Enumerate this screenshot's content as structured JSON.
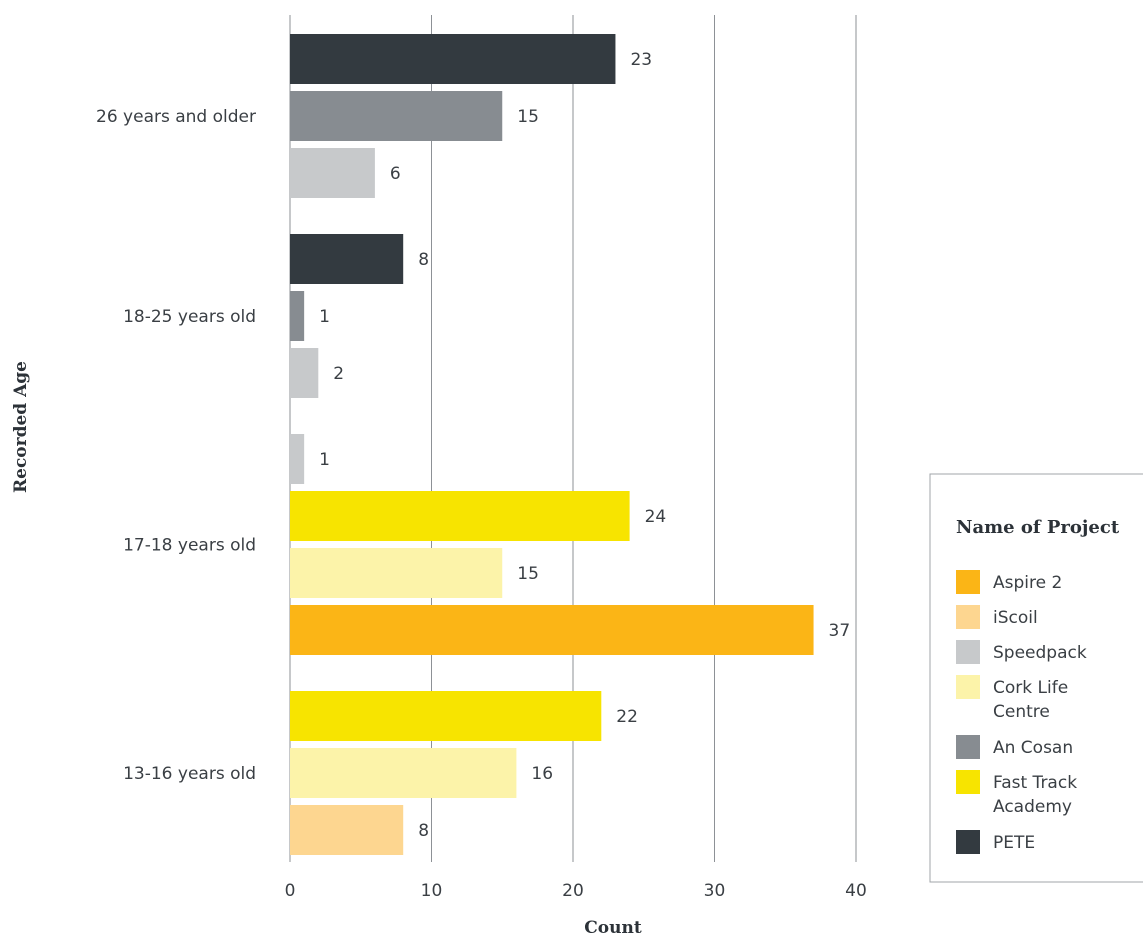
{
  "chart_data": {
    "type": "bar",
    "orientation": "horizontal",
    "xlabel": "Count",
    "ylabel": "Recorded Age",
    "xlim": [
      0,
      40
    ],
    "xticks": [
      0,
      10,
      20,
      30,
      40
    ],
    "grid": "vertical",
    "legend_title": "Name of Project",
    "legend_position": "right",
    "legend": [
      {
        "name": "Aspire 2",
        "color": "#FBB516"
      },
      {
        "name": "iScoil",
        "color": "#FDD690"
      },
      {
        "name": "Speedpack",
        "color": "#C7C9CB"
      },
      {
        "name": "Cork Life Centre",
        "color": "#FCF3A9"
      },
      {
        "name": "An Cosan",
        "color": "#878C91"
      },
      {
        "name": "Fast Track Academy",
        "color": "#F7E400"
      },
      {
        "name": "PETE",
        "color": "#333A40"
      }
    ],
    "categories": [
      {
        "label": "26 years and older",
        "bars": [
          {
            "series": "PETE",
            "value": 23
          },
          {
            "series": "An Cosan",
            "value": 15
          },
          {
            "series": "Speedpack",
            "value": 6
          }
        ]
      },
      {
        "label": "18-25 years old",
        "bars": [
          {
            "series": "PETE",
            "value": 8
          },
          {
            "series": "An Cosan",
            "value": 1
          },
          {
            "series": "Speedpack",
            "value": 2
          }
        ]
      },
      {
        "label": "17-18 years old",
        "bars": [
          {
            "series": "Speedpack",
            "value": 1
          },
          {
            "series": "Fast Track Academy",
            "value": 24
          },
          {
            "series": "Cork Life Centre",
            "value": 15
          },
          {
            "series": "Aspire 2",
            "value": 37
          }
        ]
      },
      {
        "label": "13-16 years old",
        "bars": [
          {
            "series": "Fast Track Academy",
            "value": 22
          },
          {
            "series": "Cork Life Centre",
            "value": 16
          },
          {
            "series": "iScoil",
            "value": 8
          }
        ]
      }
    ]
  }
}
